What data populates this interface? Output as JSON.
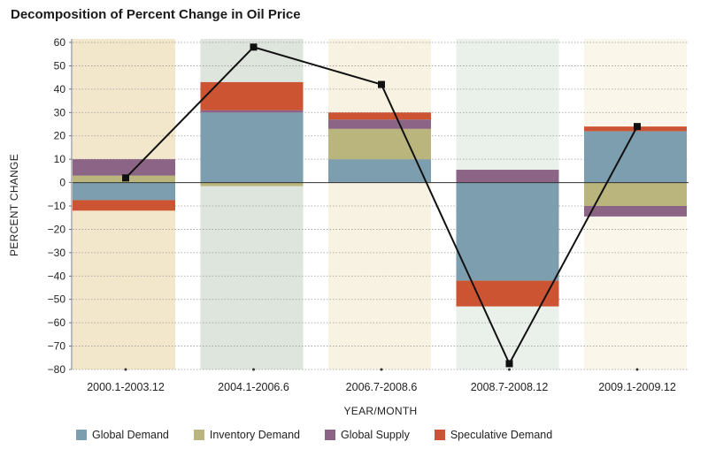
{
  "chart_data": {
    "type": "bar",
    "stacked": true,
    "title": "Decomposition of Percent Change in Oil Price",
    "xlabel": "YEAR/MONTH",
    "ylabel": "PERCENT CHANGE",
    "ylim": [
      -80,
      60
    ],
    "yticks": [
      60,
      50,
      40,
      30,
      20,
      10,
      0,
      -10,
      -20,
      -30,
      -40,
      -50,
      -60,
      -70,
      -80
    ],
    "ytick_labels": [
      "60",
      "50",
      "40",
      "30",
      "20",
      "10",
      "0",
      "−10",
      "−20",
      "−30",
      "−40",
      "−50",
      "−60",
      "−70",
      "−80"
    ],
    "grid": true,
    "legend_position": "bottom",
    "categories": [
      "2000.1-2003.12",
      "2004.1-2006.6",
      "2006.7-2008.6",
      "2008.7-2008.12",
      "2009.1-2009.12"
    ],
    "band_colors": [
      "#f2e7ca",
      "#dde5dd",
      "#f8f2e2",
      "#eaf0ea",
      "#faf6ea"
    ],
    "series": [
      {
        "name": "Global Demand",
        "color": "#7d9eaf",
        "values": [
          -7.5,
          30,
          10,
          -42,
          22
        ]
      },
      {
        "name": "Inventory Demand",
        "color": "#b9b57c",
        "values": [
          3,
          -1.5,
          13,
          0,
          -10
        ]
      },
      {
        "name": "Global Supply",
        "color": "#8c6486",
        "values": [
          7,
          1,
          4,
          5.5,
          -4.5
        ]
      },
      {
        "name": "Speculative Demand",
        "color": "#cd5433",
        "values": [
          -4.5,
          12,
          3,
          -11,
          2
        ]
      }
    ],
    "line": {
      "name": "",
      "values": [
        2,
        58,
        42,
        -77.5,
        24
      ],
      "color": "#111111"
    }
  }
}
